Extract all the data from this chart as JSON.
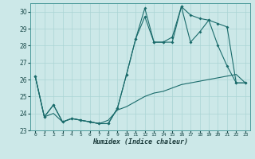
{
  "title": "",
  "xlabel": "Humidex (Indice chaleur)",
  "bg_color": "#cce8e8",
  "grid_color": "#aad4d4",
  "line_color": "#1a6b6b",
  "xlim": [
    -0.5,
    23.5
  ],
  "ylim": [
    23,
    30.5
  ],
  "yticks": [
    23,
    24,
    25,
    26,
    27,
    28,
    29,
    30
  ],
  "xticks": [
    0,
    1,
    2,
    3,
    4,
    5,
    6,
    7,
    8,
    9,
    10,
    11,
    12,
    13,
    14,
    15,
    16,
    17,
    18,
    19,
    20,
    21,
    22,
    23
  ],
  "line1_x": [
    0,
    1,
    2,
    3,
    4,
    5,
    6,
    7,
    8,
    9,
    10,
    11,
    12,
    13,
    14,
    15,
    16,
    17,
    18,
    19,
    20,
    21,
    22,
    23
  ],
  "line1_y": [
    26.2,
    23.8,
    24.5,
    23.5,
    23.7,
    23.6,
    23.5,
    23.4,
    23.4,
    24.3,
    26.3,
    28.4,
    30.2,
    28.2,
    28.2,
    28.2,
    30.3,
    29.8,
    29.6,
    29.5,
    29.3,
    29.1,
    25.8,
    25.8
  ],
  "line2_x": [
    0,
    1,
    2,
    3,
    4,
    5,
    6,
    7,
    8,
    9,
    10,
    11,
    12,
    13,
    14,
    15,
    16,
    17,
    18,
    19,
    20,
    21,
    22,
    23
  ],
  "line2_y": [
    26.2,
    23.8,
    24.5,
    23.5,
    23.7,
    23.6,
    23.5,
    23.4,
    23.4,
    24.3,
    26.3,
    28.4,
    29.7,
    28.2,
    28.2,
    28.5,
    30.3,
    28.2,
    28.8,
    29.5,
    28.0,
    26.8,
    25.8,
    25.8
  ],
  "line3_x": [
    0,
    1,
    2,
    3,
    4,
    5,
    6,
    7,
    8,
    9,
    10,
    11,
    12,
    13,
    14,
    15,
    16,
    17,
    18,
    19,
    20,
    21,
    22,
    23
  ],
  "line3_y": [
    26.2,
    23.8,
    24.0,
    23.5,
    23.7,
    23.6,
    23.5,
    23.4,
    23.6,
    24.2,
    24.4,
    24.7,
    25.0,
    25.2,
    25.3,
    25.5,
    25.7,
    25.8,
    25.9,
    26.0,
    26.1,
    26.2,
    26.3,
    25.8
  ]
}
